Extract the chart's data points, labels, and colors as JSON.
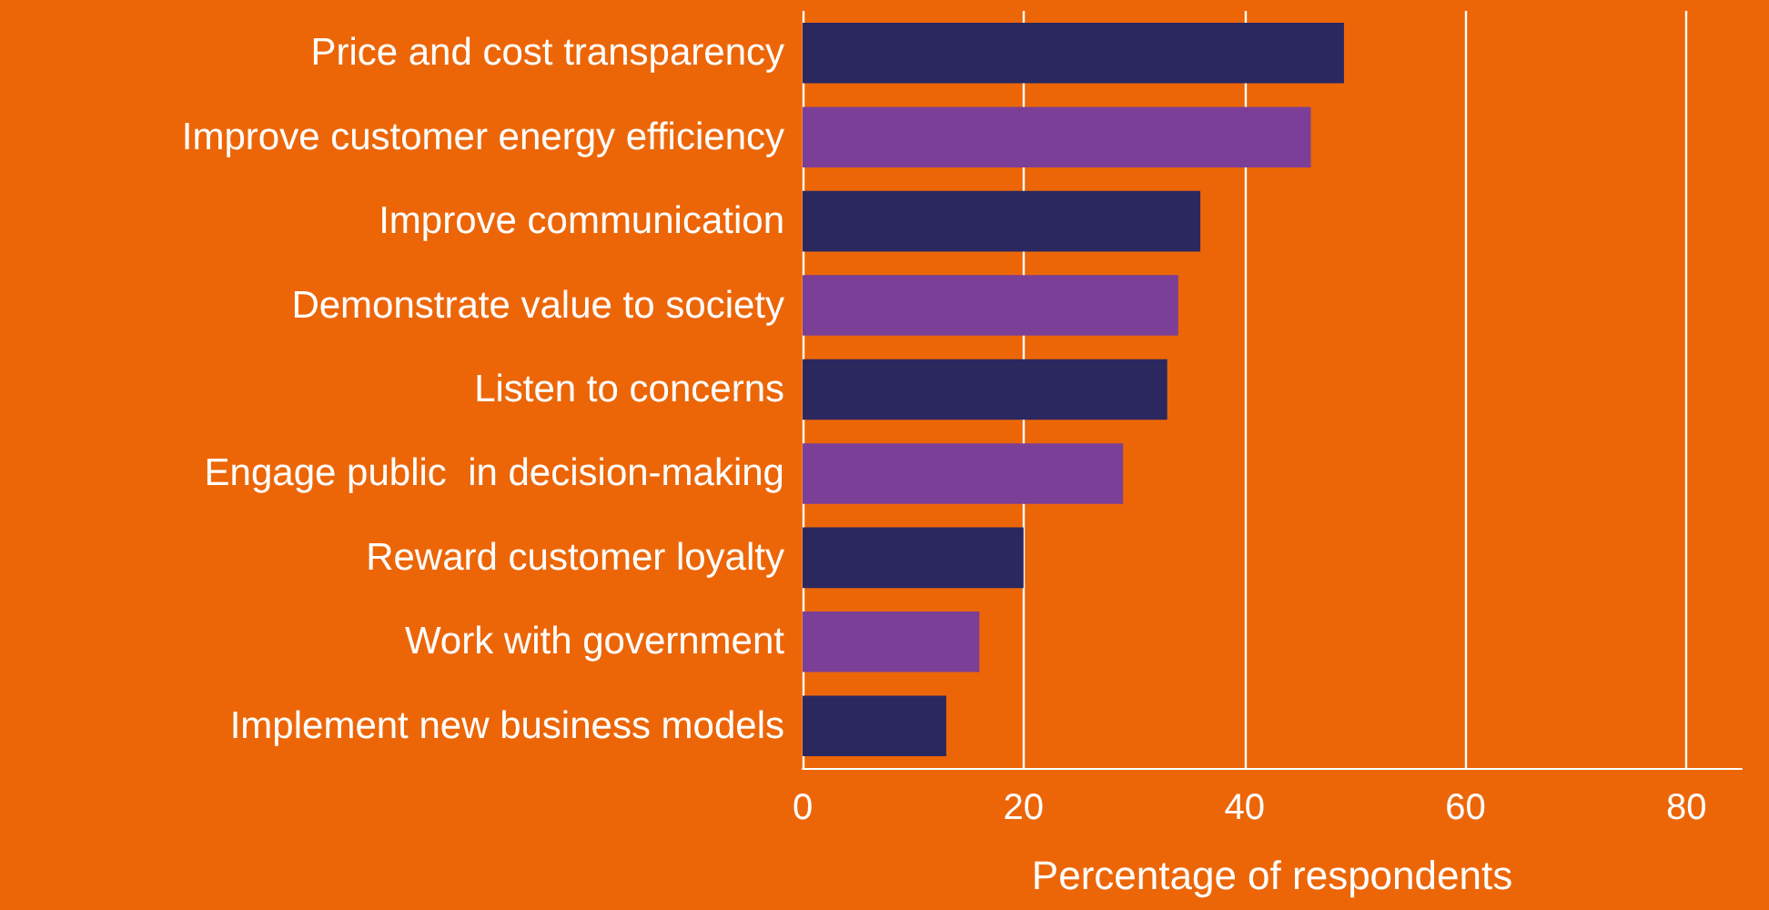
{
  "chart_data": {
    "type": "bar",
    "orientation": "horizontal",
    "xlabel": "Percentage of respondents",
    "categories": [
      "Price and cost transparency",
      "Improve customer energy efficiency",
      "Improve communication",
      "Demonstrate value to society",
      "Listen to concerns",
      "Engage public  in decision-making",
      "Reward customer loyalty",
      "Work with government",
      "Implement new business models"
    ],
    "values": [
      49,
      46,
      36,
      34,
      33,
      29,
      20,
      16,
      13
    ],
    "colors": [
      "#2b2860",
      "#7b3f97",
      "#2b2860",
      "#7b3f97",
      "#2b2860",
      "#7b3f97",
      "#2b2860",
      "#7b3f97",
      "#2b2860"
    ],
    "xlim": [
      0,
      85
    ],
    "xticks": [
      0,
      20,
      40,
      60,
      80
    ],
    "grid": "x"
  }
}
